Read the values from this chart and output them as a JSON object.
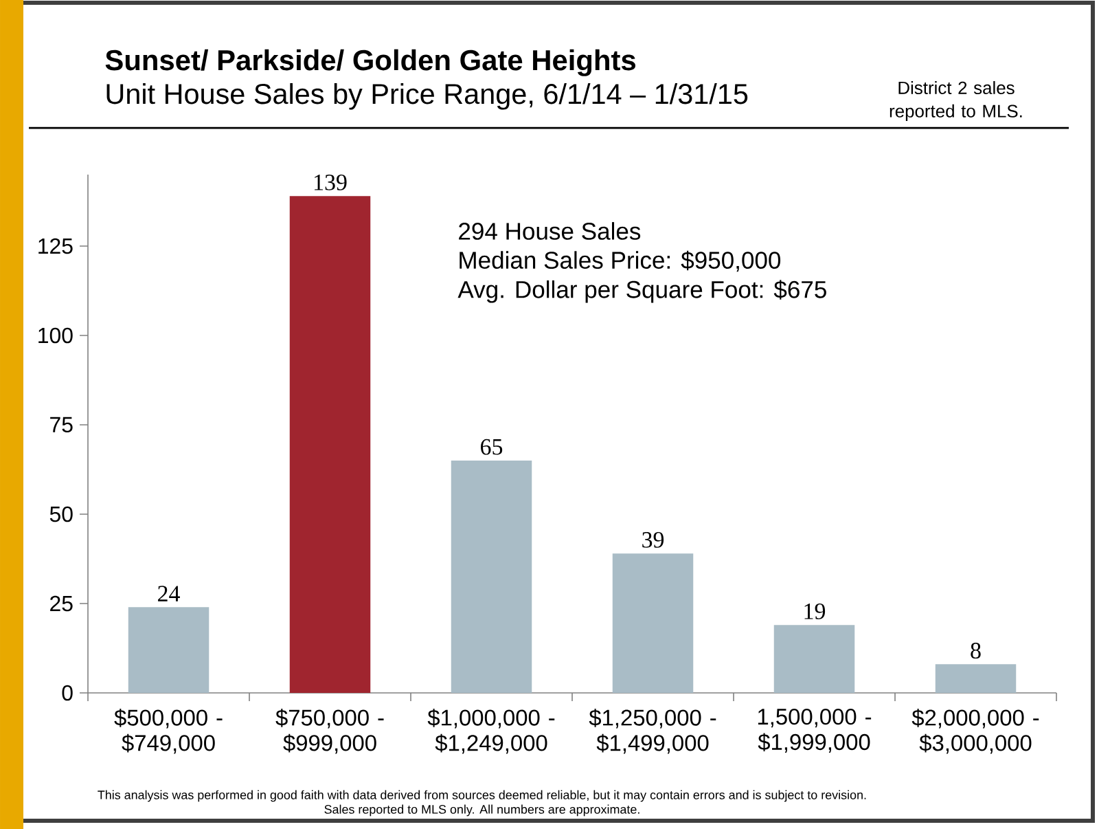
{
  "chart_data": {
    "type": "bar",
    "title": "Sunset/ Parkside/ Golden Gate Heights",
    "subtitle": "Unit House Sales by Price Range, 6/1/14 – 1/31/15",
    "categories": [
      "$500,000 - $749,000",
      "$750,000 - $999,000",
      "$1,000,000 - $1,249,000",
      "$1,250,000 - $1,499,000",
      "1,500,000 - $1,999,000",
      "$2,000,000 - $3,000,000"
    ],
    "values": [
      24,
      139,
      65,
      39,
      19,
      8
    ],
    "colors": [
      "#a9bcc6",
      "#a0252f",
      "#a9bcc6",
      "#a9bcc6",
      "#a9bcc6",
      "#a9bcc6"
    ],
    "ylim": [
      0,
      145
    ],
    "yticks": [
      0,
      25,
      50,
      75,
      100,
      125
    ],
    "data_labels": true,
    "annotations": [
      "District 2 sales reported to MLS.",
      "294 House Sales",
      "Median Sales Price: $950,000",
      "Avg. Dollar per Square Foot: $675",
      "This analysis was performed in good faith with data derived from sources deemed reliable, but it may contain errors and is subject to revision.",
      "Sales reported to MLS only. All numbers are approximate."
    ]
  }
}
